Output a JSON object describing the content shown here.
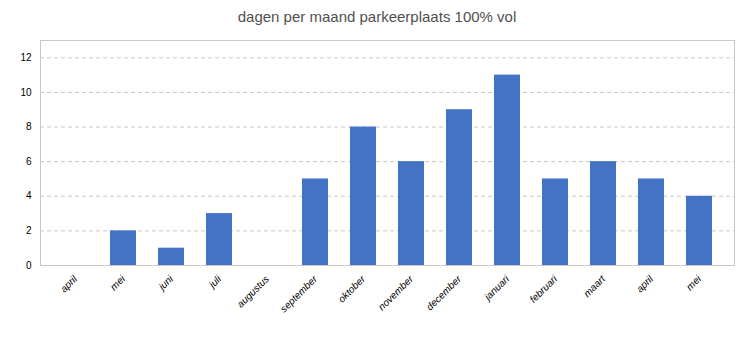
{
  "chart_data": {
    "type": "bar",
    "title": "dagen per maand  parkeerplaats 100% vol",
    "categories": [
      "april",
      "mei",
      "juni",
      "juli",
      "augustus",
      "september",
      "oktober",
      "november",
      "december",
      "januari",
      "februari",
      "maart",
      "april",
      "mei"
    ],
    "values": [
      0,
      2,
      1,
      3,
      0,
      5,
      8,
      6,
      9,
      11,
      5,
      6,
      5,
      4
    ],
    "color": "#4472C4",
    "ylim": [
      0,
      13
    ],
    "yticks": [
      0,
      2,
      4,
      6,
      8,
      10,
      12
    ],
    "grid": true
  }
}
